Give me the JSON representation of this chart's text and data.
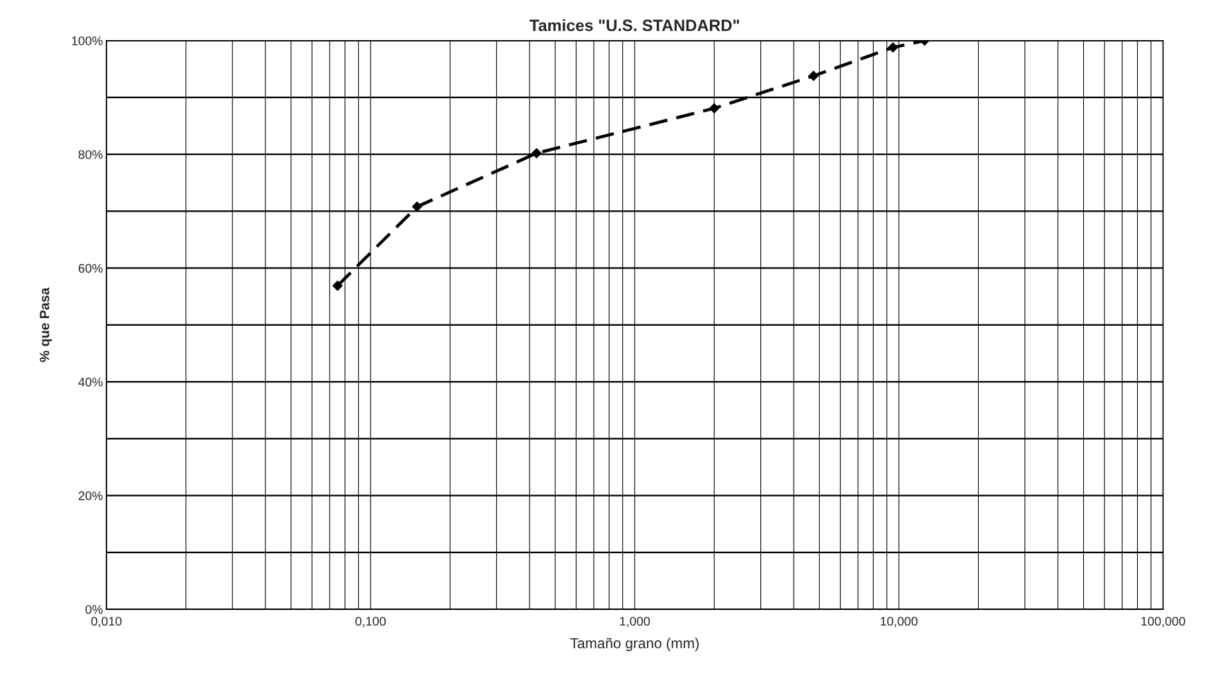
{
  "chart_data": {
    "type": "line",
    "title": "Tamices \"U.S. STANDARD\"",
    "xlabel": "Tamaño grano (mm)",
    "ylabel": "% que Pasa",
    "x": [
      0.075,
      0.15,
      0.425,
      2.0,
      4.75,
      9.5,
      12.5
    ],
    "series": [
      {
        "color": "#000000",
        "values": [
          56.9,
          70.8,
          80.2,
          88.1,
          93.8,
          98.8,
          100
        ]
      }
    ],
    "log": "x",
    "xlim": [
      0.01,
      100
    ],
    "ylim": [
      0,
      100
    ],
    "xticks": [
      {
        "value": 0.01,
        "label": "0,010"
      },
      {
        "value": 0.02,
        "label": null
      },
      {
        "value": 0.03,
        "label": null
      },
      {
        "value": 0.04,
        "label": null
      },
      {
        "value": 0.05,
        "label": null
      },
      {
        "value": 0.06,
        "label": null
      },
      {
        "value": 0.07,
        "label": null
      },
      {
        "value": 0.08,
        "label": null
      },
      {
        "value": 0.09,
        "label": null
      },
      {
        "value": 0.1,
        "label": "0,100"
      },
      {
        "value": 0.2,
        "label": null
      },
      {
        "value": 0.3,
        "label": null
      },
      {
        "value": 0.4,
        "label": null
      },
      {
        "value": 0.5,
        "label": null
      },
      {
        "value": 0.6,
        "label": null
      },
      {
        "value": 0.7,
        "label": null
      },
      {
        "value": 0.8,
        "label": null
      },
      {
        "value": 0.9,
        "label": null
      },
      {
        "value": 1,
        "label": "1,000"
      },
      {
        "value": 2,
        "label": null
      },
      {
        "value": 3,
        "label": null
      },
      {
        "value": 4,
        "label": null
      },
      {
        "value": 5,
        "label": null
      },
      {
        "value": 6,
        "label": null
      },
      {
        "value": 7,
        "label": null
      },
      {
        "value": 8,
        "label": null
      },
      {
        "value": 9,
        "label": null
      },
      {
        "value": 10,
        "label": "10,000"
      },
      {
        "value": 20,
        "label": null
      },
      {
        "value": 30,
        "label": null
      },
      {
        "value": 40,
        "label": null
      },
      {
        "value": 50,
        "label": null
      },
      {
        "value": 60,
        "label": null
      },
      {
        "value": 70,
        "label": null
      },
      {
        "value": 80,
        "label": null
      },
      {
        "value": 90,
        "label": null
      },
      {
        "value": 100,
        "label": "100,000"
      }
    ],
    "yticks": [
      {
        "value": 0,
        "label": "0%"
      },
      {
        "value": 10,
        "label": null
      },
      {
        "value": 20,
        "label": "20%"
      },
      {
        "value": 30,
        "label": null
      },
      {
        "value": 40,
        "label": "40%"
      },
      {
        "value": 50,
        "label": null
      },
      {
        "value": 60,
        "label": "60%"
      },
      {
        "value": 70,
        "label": null
      },
      {
        "value": 80,
        "label": "80%"
      },
      {
        "value": 90,
        "label": null
      },
      {
        "value": 100,
        "label": "100%"
      }
    ],
    "grid": true,
    "marker": "diamond",
    "line_style": "dashed"
  }
}
